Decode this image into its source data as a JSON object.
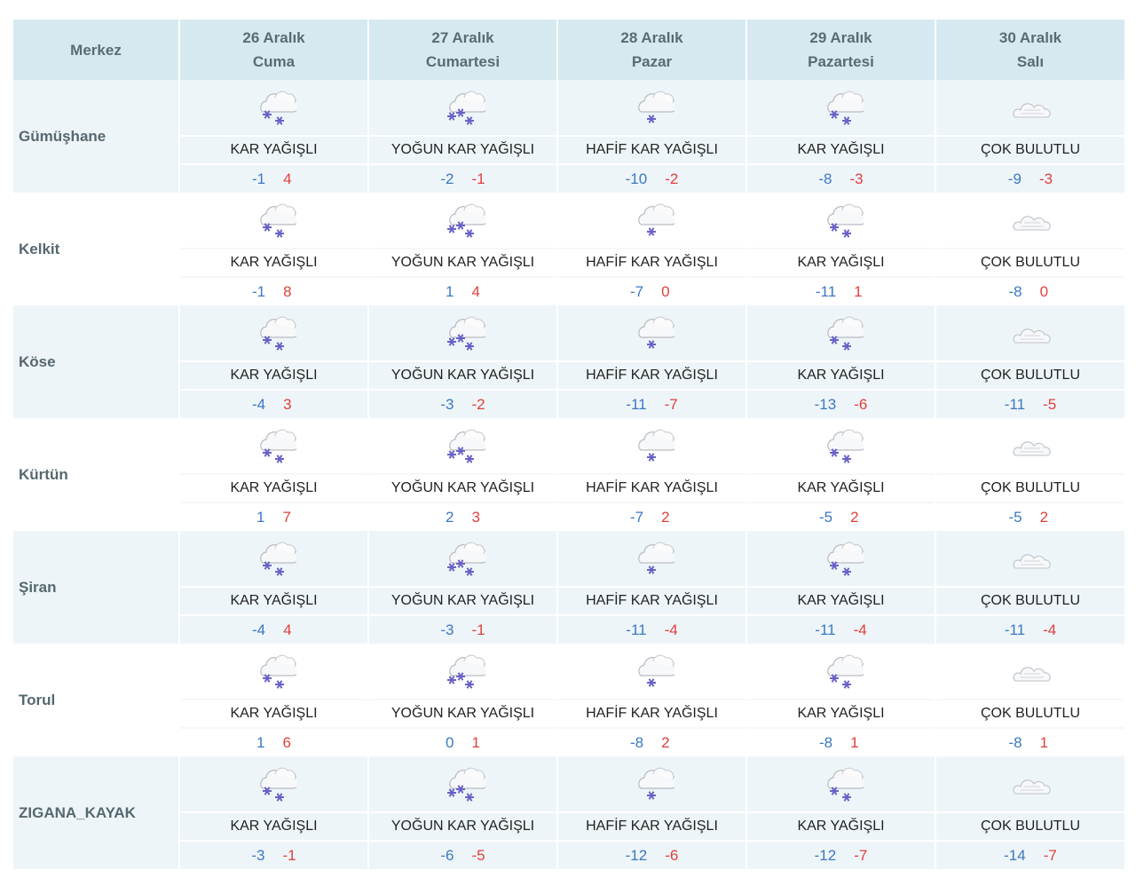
{
  "header": {
    "merkez_label": "Merkez",
    "days": [
      {
        "date": "26 Aralık",
        "weekday": "Cuma"
      },
      {
        "date": "27 Aralık",
        "weekday": "Cumartesi"
      },
      {
        "date": "28 Aralık",
        "weekday": "Pazar"
      },
      {
        "date": "29 Aralık",
        "weekday": "Pazartesi"
      },
      {
        "date": "30 Aralık",
        "weekday": "Salı"
      }
    ]
  },
  "colors": {
    "min_temp": "#3a78c4",
    "max_temp": "#e0403c",
    "header_bg": "#d6e9f0",
    "band_bg": "#eef5f8"
  },
  "rows": [
    {
      "name": "Gümüşhane",
      "days": [
        {
          "icon": "snow-icon",
          "condition": "KAR YAĞIŞLI",
          "min": "-1",
          "max": "4"
        },
        {
          "icon": "heavy-snow-icon",
          "condition": "YOĞUN KAR YAĞIŞLI",
          "min": "-2",
          "max": "-1"
        },
        {
          "icon": "light-snow-icon",
          "condition": "HAFİF KAR YAĞIŞLI",
          "min": "-10",
          "max": "-2"
        },
        {
          "icon": "snow-icon",
          "condition": "KAR YAĞIŞLI",
          "min": "-8",
          "max": "-3"
        },
        {
          "icon": "cloudy-icon",
          "condition": "ÇOK BULUTLU",
          "min": "-9",
          "max": "-3"
        }
      ]
    },
    {
      "name": "Kelkit",
      "days": [
        {
          "icon": "snow-icon",
          "condition": "KAR YAĞIŞLI",
          "min": "-1",
          "max": "8"
        },
        {
          "icon": "heavy-snow-icon",
          "condition": "YOĞUN KAR YAĞIŞLI",
          "min": "1",
          "max": "4"
        },
        {
          "icon": "light-snow-icon",
          "condition": "HAFİF KAR YAĞIŞLI",
          "min": "-7",
          "max": "0"
        },
        {
          "icon": "snow-icon",
          "condition": "KAR YAĞIŞLI",
          "min": "-11",
          "max": "1"
        },
        {
          "icon": "cloudy-icon",
          "condition": "ÇOK BULUTLU",
          "min": "-8",
          "max": "0"
        }
      ]
    },
    {
      "name": "Köse",
      "days": [
        {
          "icon": "snow-icon",
          "condition": "KAR YAĞIŞLI",
          "min": "-4",
          "max": "3"
        },
        {
          "icon": "heavy-snow-icon",
          "condition": "YOĞUN KAR YAĞIŞLI",
          "min": "-3",
          "max": "-2"
        },
        {
          "icon": "light-snow-icon",
          "condition": "HAFİF KAR YAĞIŞLI",
          "min": "-11",
          "max": "-7"
        },
        {
          "icon": "snow-icon",
          "condition": "KAR YAĞIŞLI",
          "min": "-13",
          "max": "-6"
        },
        {
          "icon": "cloudy-icon",
          "condition": "ÇOK BULUTLU",
          "min": "-11",
          "max": "-5"
        }
      ]
    },
    {
      "name": "Kürtün",
      "days": [
        {
          "icon": "snow-icon",
          "condition": "KAR YAĞIŞLI",
          "min": "1",
          "max": "7"
        },
        {
          "icon": "heavy-snow-icon",
          "condition": "YOĞUN KAR YAĞIŞLI",
          "min": "2",
          "max": "3"
        },
        {
          "icon": "light-snow-icon",
          "condition": "HAFİF KAR YAĞIŞLI",
          "min": "-7",
          "max": "2"
        },
        {
          "icon": "snow-icon",
          "condition": "KAR YAĞIŞLI",
          "min": "-5",
          "max": "2"
        },
        {
          "icon": "cloudy-icon",
          "condition": "ÇOK BULUTLU",
          "min": "-5",
          "max": "2"
        }
      ]
    },
    {
      "name": "Şiran",
      "days": [
        {
          "icon": "snow-icon",
          "condition": "KAR YAĞIŞLI",
          "min": "-4",
          "max": "4"
        },
        {
          "icon": "heavy-snow-icon",
          "condition": "YOĞUN KAR YAĞIŞLI",
          "min": "-3",
          "max": "-1"
        },
        {
          "icon": "light-snow-icon",
          "condition": "HAFİF KAR YAĞIŞLI",
          "min": "-11",
          "max": "-4"
        },
        {
          "icon": "snow-icon",
          "condition": "KAR YAĞIŞLI",
          "min": "-11",
          "max": "-4"
        },
        {
          "icon": "cloudy-icon",
          "condition": "ÇOK BULUTLU",
          "min": "-11",
          "max": "-4"
        }
      ]
    },
    {
      "name": "Torul",
      "days": [
        {
          "icon": "snow-icon",
          "condition": "KAR YAĞIŞLI",
          "min": "1",
          "max": "6"
        },
        {
          "icon": "heavy-snow-icon",
          "condition": "YOĞUN KAR YAĞIŞLI",
          "min": "0",
          "max": "1"
        },
        {
          "icon": "light-snow-icon",
          "condition": "HAFİF KAR YAĞIŞLI",
          "min": "-8",
          "max": "2"
        },
        {
          "icon": "snow-icon",
          "condition": "KAR YAĞIŞLI",
          "min": "-8",
          "max": "1"
        },
        {
          "icon": "cloudy-icon",
          "condition": "ÇOK BULUTLU",
          "min": "-8",
          "max": "1"
        }
      ]
    },
    {
      "name": "ZIGANA_KAYAK",
      "days": [
        {
          "icon": "snow-icon",
          "condition": "KAR YAĞIŞLI",
          "min": "-3",
          "max": "-1"
        },
        {
          "icon": "heavy-snow-icon",
          "condition": "YOĞUN KAR YAĞIŞLI",
          "min": "-6",
          "max": "-5"
        },
        {
          "icon": "light-snow-icon",
          "condition": "HAFİF KAR YAĞIŞLI",
          "min": "-12",
          "max": "-6"
        },
        {
          "icon": "snow-icon",
          "condition": "KAR YAĞIŞLI",
          "min": "-12",
          "max": "-7"
        },
        {
          "icon": "cloudy-icon",
          "condition": "ÇOK BULUTLU",
          "min": "-14",
          "max": "-7"
        }
      ]
    }
  ]
}
